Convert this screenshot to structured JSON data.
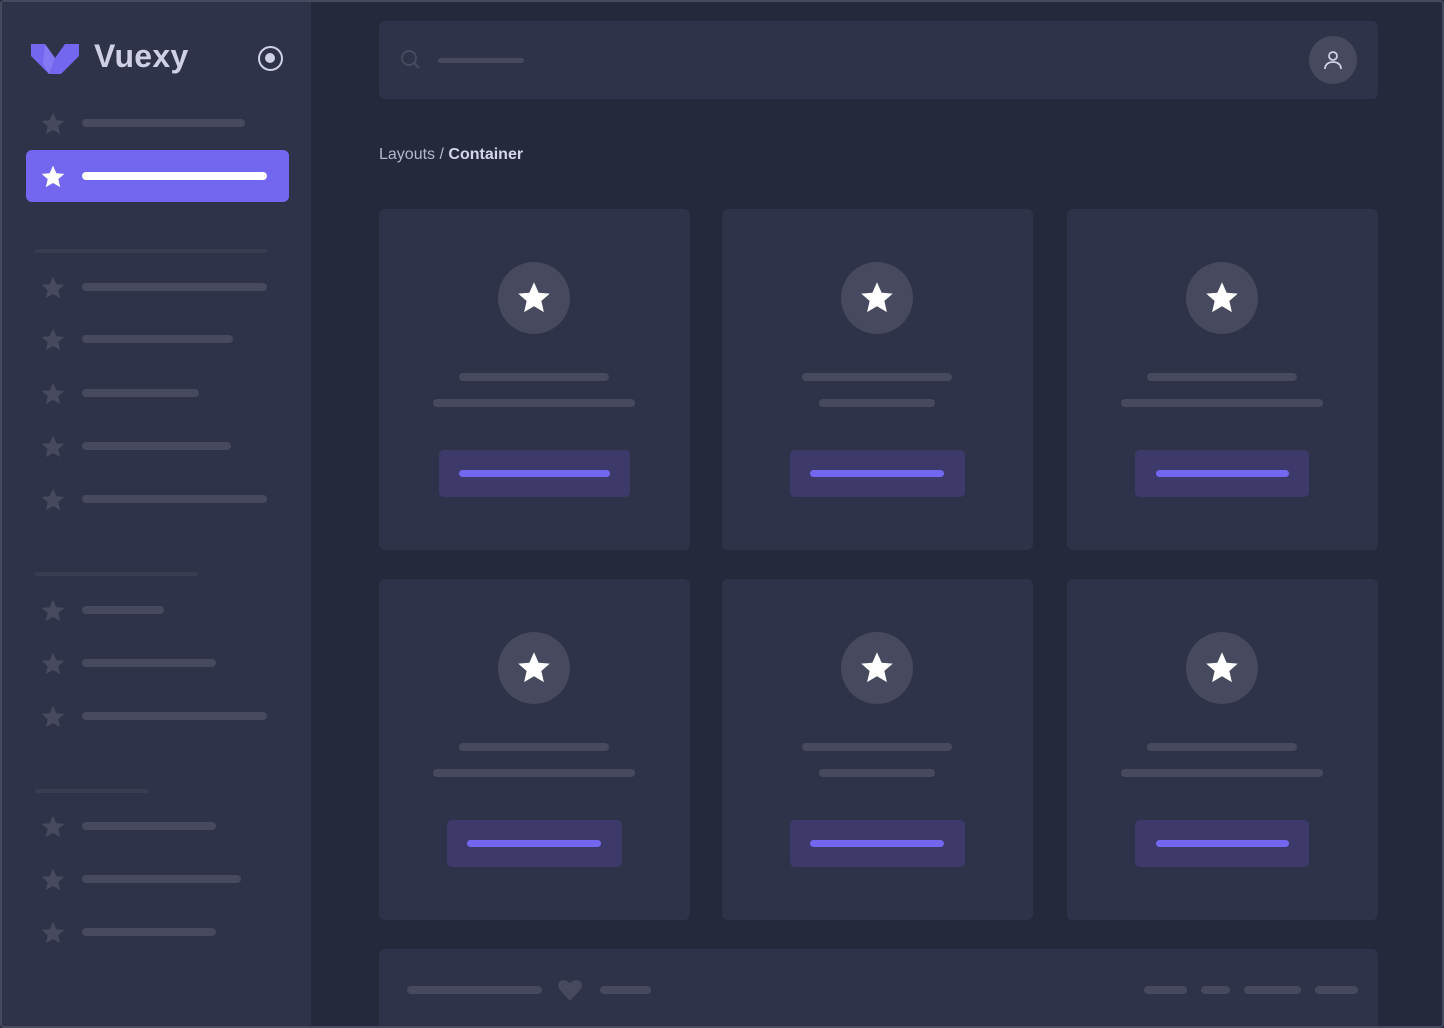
{
  "brand": {
    "name": "Vuexy",
    "logo": "vuexy-logo",
    "primary_color": "#7367f0"
  },
  "header": {
    "search_icon": "search-icon",
    "user_icon": "user-icon"
  },
  "breadcrumb": {
    "parent": "Layouts",
    "separator": " / ",
    "current": "Container"
  },
  "sidebar": {
    "pin_icon": "radio-pin-icon",
    "active_index": 1,
    "item_icon": "star-icon"
  },
  "cards": {
    "icon": "star-icon",
    "count": 6
  },
  "footer": {
    "icon": "heart-icon"
  }
}
